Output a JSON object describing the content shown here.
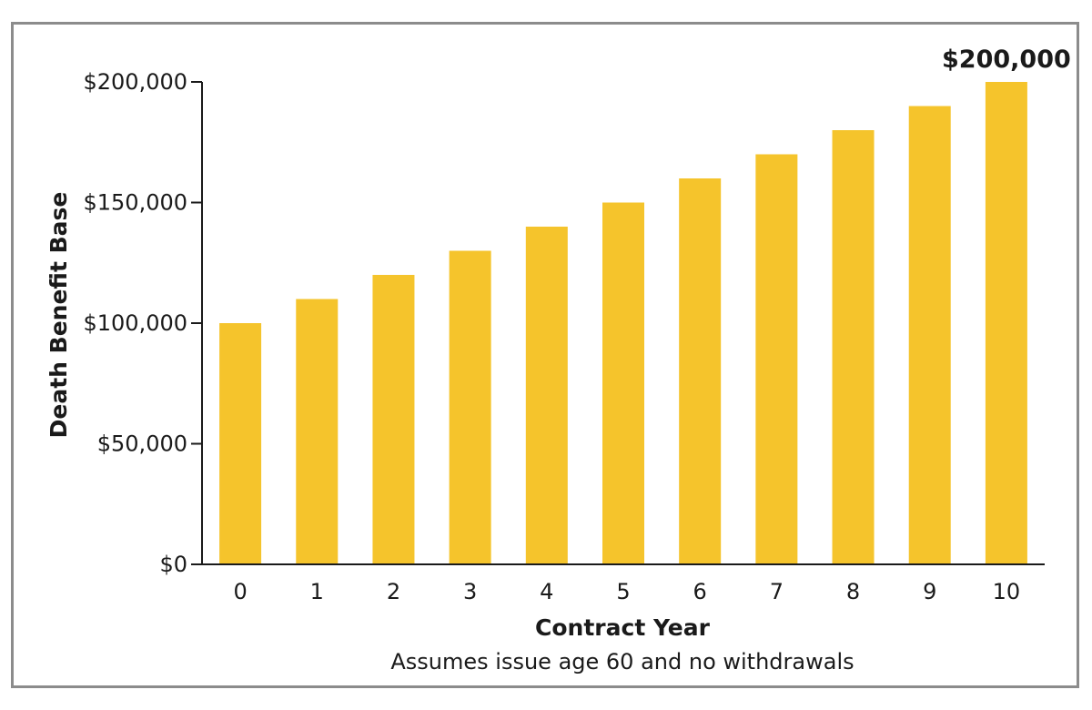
{
  "chart_data": {
    "type": "bar",
    "categories": [
      "0",
      "1",
      "2",
      "3",
      "4",
      "5",
      "6",
      "7",
      "8",
      "9",
      "10"
    ],
    "values": [
      100000,
      110000,
      120000,
      130000,
      140000,
      150000,
      160000,
      170000,
      180000,
      190000,
      200000
    ],
    "xlabel": "Contract Year",
    "ylabel": "Death Benefit Base",
    "note": "Assumes issue age 60 and no withdrawals",
    "ylim": [
      0,
      200000
    ],
    "yticks": [
      0,
      50000,
      100000,
      150000,
      200000
    ],
    "ytick_labels": [
      "$0",
      "$50,000",
      "$100,000",
      "$150,000",
      "$200,000"
    ],
    "data_labels": [
      {
        "index": 10,
        "text": "$200,000"
      }
    ],
    "grid": false,
    "legend": "none",
    "bar_color": "#f5c42c",
    "axis_color": "#1a1a1a"
  }
}
